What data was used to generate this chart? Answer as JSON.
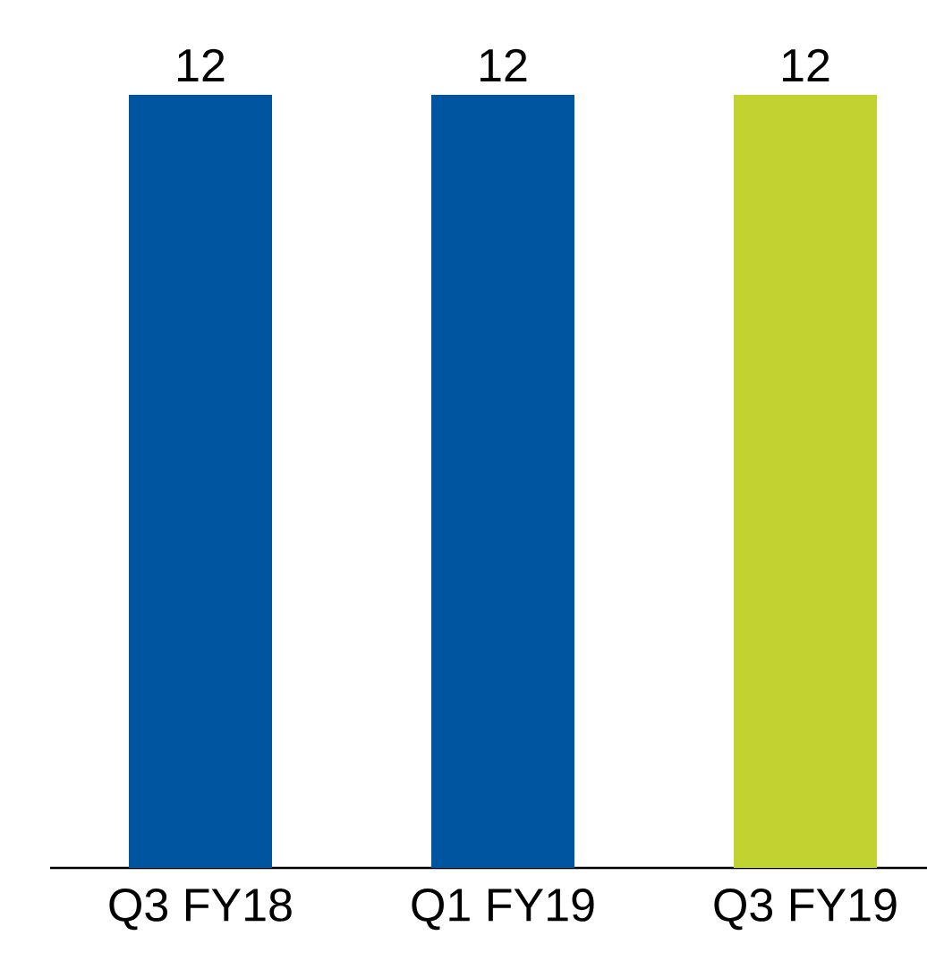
{
  "chart_data": {
    "type": "bar",
    "categories": [
      "Q3 FY18",
      "Q1 FY19",
      "Q3 FY19"
    ],
    "values": [
      12,
      12,
      12
    ],
    "colors": [
      "#0055a0",
      "#0055a0",
      "#c0d330"
    ],
    "data_labels": true
  }
}
